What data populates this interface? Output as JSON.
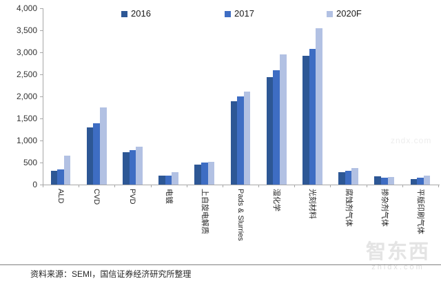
{
  "chart_data": {
    "type": "bar",
    "title": "",
    "xlabel": "",
    "ylabel": "",
    "ylim": [
      0,
      4000
    ],
    "ytick_step": 500,
    "grid": false,
    "legend_position": "top",
    "categories": [
      "ALD",
      "CVD",
      "PVD",
      "电镀",
      "上自旋电解质",
      "Pads & Slurries",
      "湿化学",
      "光刻材料",
      "腐蚀剂气体",
      "掺杂剂气体",
      "平版印刷气体"
    ],
    "series": [
      {
        "name": "2016",
        "color": "#2d5795",
        "values": [
          310,
          1290,
          730,
          200,
          460,
          1890,
          2440,
          2920,
          280,
          190,
          130
        ]
      },
      {
        "name": "2017",
        "color": "#3e6dc3",
        "values": [
          350,
          1390,
          780,
          210,
          500,
          2000,
          2590,
          3080,
          310,
          160,
          160
        ]
      },
      {
        "name": "2020F",
        "color": "#b2c1e3",
        "values": [
          660,
          1750,
          860,
          280,
          520,
          2110,
          2960,
          3550,
          370,
          170,
          210
        ]
      }
    ]
  },
  "colors": {
    "axis": "#a6a6a6",
    "tick_text": "#333333",
    "label_text": "#262626"
  },
  "layout_hints": {
    "legend_lefts": [
      176,
      326,
      474
    ]
  },
  "source_note": "资料来源：SEMI，国信证券经济研究所整理",
  "watermark": {
    "logo": "智东西",
    "domain": "zhidx.com",
    "faint": "zndx.com"
  }
}
